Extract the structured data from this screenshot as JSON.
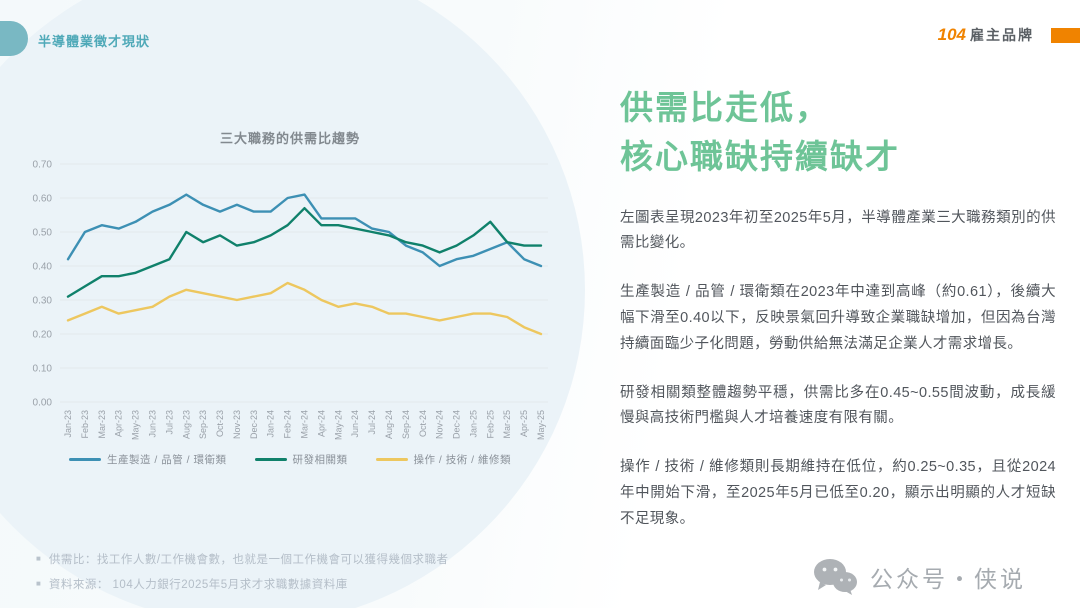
{
  "header": {
    "section_title": "半導體業徵才現狀",
    "logo_104": "104",
    "logo_brand": "雇主品牌"
  },
  "chart": {
    "title": "三大職務的供需比趨勢"
  },
  "chart_data": {
    "type": "line",
    "title": "三大職務的供需比趨勢",
    "x": [
      "Jan-23",
      "Feb-23",
      "Mar-23",
      "Apr-23",
      "May-23",
      "Jun-23",
      "Jul-23",
      "Aug-23",
      "Sep-23",
      "Oct-23",
      "Nov-23",
      "Dec-23",
      "Jan-24",
      "Feb-24",
      "Mar-24",
      "Apr-24",
      "May-24",
      "Jun-24",
      "Jul-24",
      "Aug-24",
      "Sep-24",
      "Oct-24",
      "Nov-24",
      "Dec-24",
      "Jan-25",
      "Feb-25",
      "Mar-25",
      "Apr-25",
      "May-25"
    ],
    "series": [
      {
        "name": "生產製造 / 品管 / 環衛類",
        "color": "#3d90b4",
        "values": [
          0.42,
          0.5,
          0.52,
          0.51,
          0.53,
          0.56,
          0.58,
          0.61,
          0.58,
          0.56,
          0.58,
          0.56,
          0.56,
          0.6,
          0.61,
          0.54,
          0.54,
          0.54,
          0.51,
          0.5,
          0.46,
          0.44,
          0.4,
          0.42,
          0.43,
          0.45,
          0.47,
          0.42,
          0.4
        ]
      },
      {
        "name": "研發相關類",
        "color": "#10816b",
        "values": [
          0.31,
          0.34,
          0.37,
          0.37,
          0.38,
          0.4,
          0.42,
          0.5,
          0.47,
          0.49,
          0.46,
          0.47,
          0.49,
          0.52,
          0.57,
          0.52,
          0.52,
          0.51,
          0.5,
          0.49,
          0.47,
          0.46,
          0.44,
          0.46,
          0.49,
          0.53,
          0.47,
          0.46,
          0.46
        ]
      },
      {
        "name": "操作 / 技術 / 維修類",
        "color": "#edc75f",
        "values": [
          0.24,
          0.26,
          0.28,
          0.26,
          0.27,
          0.28,
          0.31,
          0.33,
          0.32,
          0.31,
          0.3,
          0.31,
          0.32,
          0.35,
          0.33,
          0.3,
          0.28,
          0.29,
          0.28,
          0.26,
          0.26,
          0.25,
          0.24,
          0.25,
          0.26,
          0.26,
          0.25,
          0.22,
          0.2
        ]
      }
    ],
    "ylim": [
      0,
      0.7
    ],
    "ytick_step": 0.1,
    "grid": true,
    "legend_position": "bottom"
  },
  "right_panel": {
    "title_line1": "供需比走低，",
    "title_line2": "核心職缺持續缺才",
    "paragraphs": [
      "左圖表呈現2023年初至2025年5月，半導體產業三大職務類別的供需比變化。",
      "生產製造 / 品管 / 環衛類在2023年中達到高峰（約0.61），後續大幅下滑至0.40以下，反映景氣回升導致企業職缺增加，但因為台灣持續面臨少子化問題，勞動供給無法滿足企業人才需求增長。",
      "研發相關類整體趨勢平穩，供需比多在0.45~0.55間波動，成長緩慢與高技術門檻與人才培養速度有限有關。",
      "操作 / 技術 / 維修類則長期維持在低位，約0.25~0.35，且從2024年中開始下滑，至2025年5月已低至0.20，顯示出明顯的人才短缺不足現象。"
    ]
  },
  "footnotes": {
    "bullet": "■",
    "items": [
      "供需比：找工作人數/工作機會數，也就是一個工作機會可以獲得幾個求職者",
      "資料來源： 104人力銀行2025年5月求才求職數據資料庫"
    ]
  },
  "wechat": {
    "label": "公众号・侠说"
  },
  "colors": {
    "accent_teal": "#79b8c3",
    "title_green": "#6ec497",
    "logo_orange": "#f08300",
    "series_blue": "#3d90b4",
    "series_green": "#10816b",
    "series_yellow": "#edc75f"
  }
}
